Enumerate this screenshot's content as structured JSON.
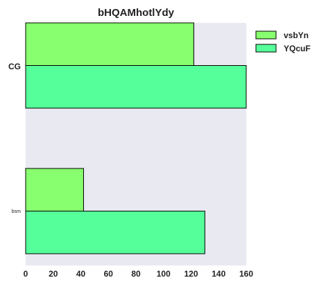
{
  "chart_data": {
    "type": "bar",
    "orientation": "horizontal",
    "title": "bHQAMhotlYdy",
    "xlabel": "",
    "ylabel": "",
    "categories": [
      "CG",
      "bsm"
    ],
    "category_label_styles": [
      "bold",
      "small"
    ],
    "series": [
      {
        "name": "vsbYn",
        "values": [
          122,
          42
        ],
        "color": "#88ff6e"
      },
      {
        "name": "YQcuF",
        "values": [
          161,
          130
        ],
        "color": "#55ff99"
      }
    ],
    "xlim": [
      0,
      160
    ],
    "xticks": [
      0,
      20,
      40,
      60,
      80,
      100,
      120,
      140,
      160
    ],
    "grid": false,
    "legend_position": "top-right",
    "plot_background": "#e9e9f2",
    "bar_edge_color": "#000000"
  }
}
